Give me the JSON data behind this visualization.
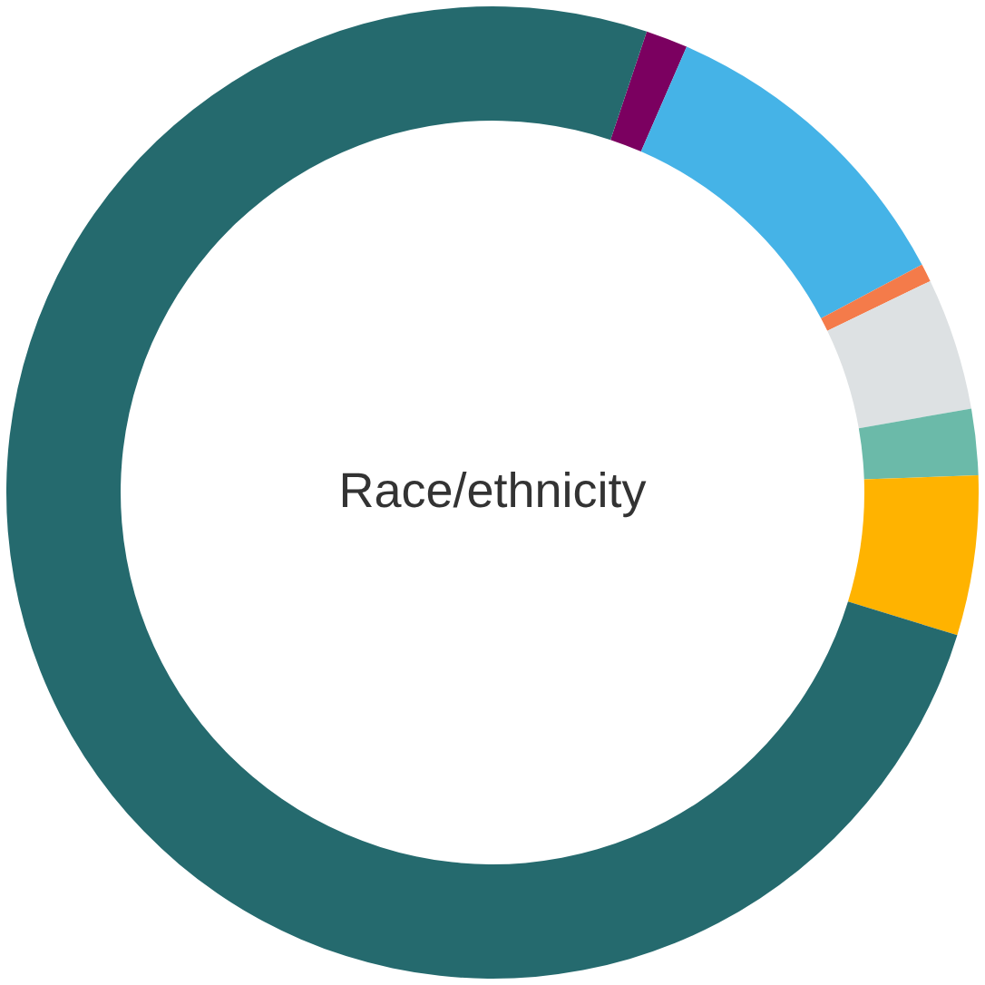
{
  "chart_data": {
    "type": "donut",
    "title": "Race/ethnicity",
    "categories": [
      null,
      null,
      null,
      null,
      null,
      null,
      null
    ],
    "values": [
      1.4,
      10.7,
      0.6,
      4.4,
      2.2,
      5.3,
      75.4
    ],
    "colors": [
      "#7b0060",
      "#45b3e7",
      "#f47b4a",
      "#dde1e3",
      "#6bbaa9",
      "#ffb300",
      "#256a6e"
    ]
  }
}
